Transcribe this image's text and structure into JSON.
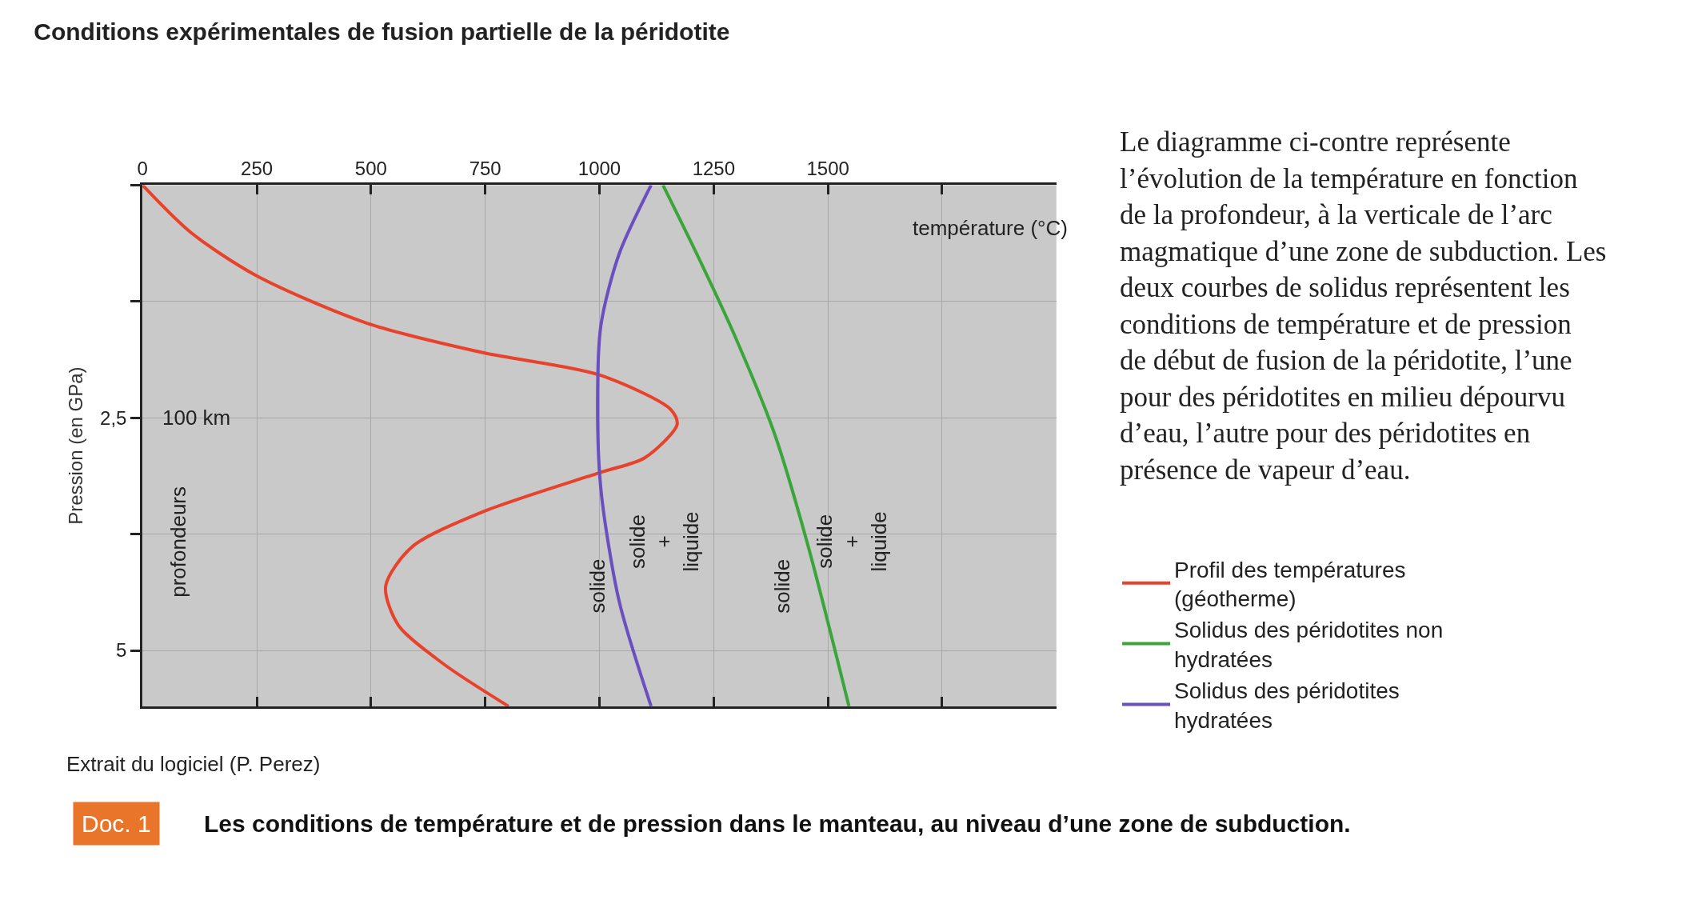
{
  "chart_data": {
    "type": "line",
    "title": "Conditions expérimentales de fusion partielle de la péridotite",
    "xlabel": "température (°C)",
    "ylabel": "Pression (en GPa)",
    "xlim": [
      0,
      2000
    ],
    "ylim": [
      5.6,
      0
    ],
    "xticks": [
      0,
      250,
      500,
      750,
      1000,
      1250,
      1500,
      {
        "value": 1750,
        "label": null
      },
      {
        "value": 2000,
        "label": null
      }
    ],
    "yticks": [
      {
        "value": 0,
        "label": null
      },
      {
        "value": 1.25,
        "label": null
      },
      {
        "value": 2.5,
        "label": "2,5"
      },
      {
        "value": 3.75,
        "label": null
      },
      5
    ],
    "grid": true,
    "legend": "right",
    "marker": "none",
    "line_style": "solid",
    "series": [
      {
        "name": "Profil des températures (géotherme)",
        "color": "#e8412c",
        "x": [
          0,
          106,
          248,
          489,
          745,
          1000,
          1156,
          1170,
          1099,
          1000,
          745,
          589,
          532,
          560,
          660,
          801
        ],
        "values": [
          0,
          0.51,
          0.97,
          1.48,
          1.8,
          2.04,
          2.41,
          2.57,
          2.93,
          3.09,
          3.51,
          3.89,
          4.31,
          4.73,
          5.15,
          5.6
        ]
      },
      {
        "name": "Solidus des péridotites non hydratées",
        "color": "#3aa63a",
        "x": [
          1139,
          1213,
          1298,
          1383,
          1454,
          1546
        ],
        "values": [
          0,
          0.74,
          1.64,
          2.67,
          3.83,
          5.6
        ]
      },
      {
        "name": "Solidus des péridotites hydratées",
        "color": "#6a4fc0",
        "x": [
          1113,
          1043,
          1003,
          996,
          1004,
          1043,
          1113
        ],
        "values": [
          0,
          0.74,
          1.51,
          2.5,
          3.31,
          4.47,
          5.6
        ]
      }
    ],
    "annotations": [
      "100 km",
      "profondeurs",
      "solide",
      "solide + liquide",
      "solide",
      "solide + liquide",
      "Le diagramme ci-contre représente l’évolution de la température en fonction de la profondeur, à la verticale de l’arc magmatique d’une zone de subduction. Les deux courbes de solidus représentent les conditions de température et de pression de début de fusion de la péridotite, l’une pour des péridotites en milieu dépourvu d’eau, l’autre pour des péridotites en présence de vapeur d’eau.",
      "Extrait du logiciel (P. Perez)",
      "Doc. 1",
      "Les conditions de température et de pression dans le manteau, au niveau d’une zone de subduction."
    ]
  }
}
